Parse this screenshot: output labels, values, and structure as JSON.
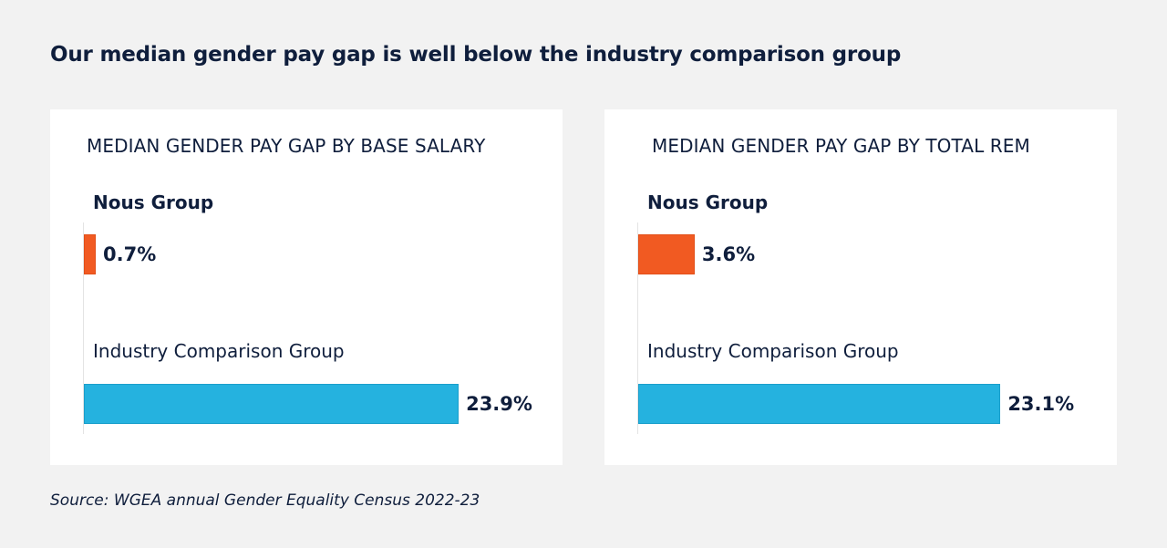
{
  "title": "Our median gender pay gap is well below the industry comparison group",
  "source": "Source: WGEA annual Gender Equality Census 2022-23",
  "colors": {
    "nous": "#f15a22",
    "industry": "#25b2df",
    "text": "#0f1e3c",
    "background": "#f2f2f2",
    "card": "#ffffff"
  },
  "chart_data": [
    {
      "type": "bar",
      "orientation": "horizontal",
      "title": "MEDIAN GENDER PAY GAP BY BASE SALARY",
      "unit": "%",
      "categories": [
        "Nous Group",
        "Industry Comparison Group"
      ],
      "values": [
        0.7,
        23.9
      ],
      "value_labels": [
        "0.7%",
        "23.9%"
      ],
      "xlim": [
        0,
        25
      ],
      "grid": false,
      "legend": "none"
    },
    {
      "type": "bar",
      "orientation": "horizontal",
      "title": "MEDIAN GENDER PAY GAP BY TOTAL REM",
      "unit": "%",
      "categories": [
        "Nous Group",
        "Industry Comparison Group"
      ],
      "values": [
        3.6,
        23.1
      ],
      "value_labels": [
        "3.6%",
        "23.1%"
      ],
      "xlim": [
        0,
        25
      ],
      "grid": false,
      "legend": "none"
    }
  ]
}
